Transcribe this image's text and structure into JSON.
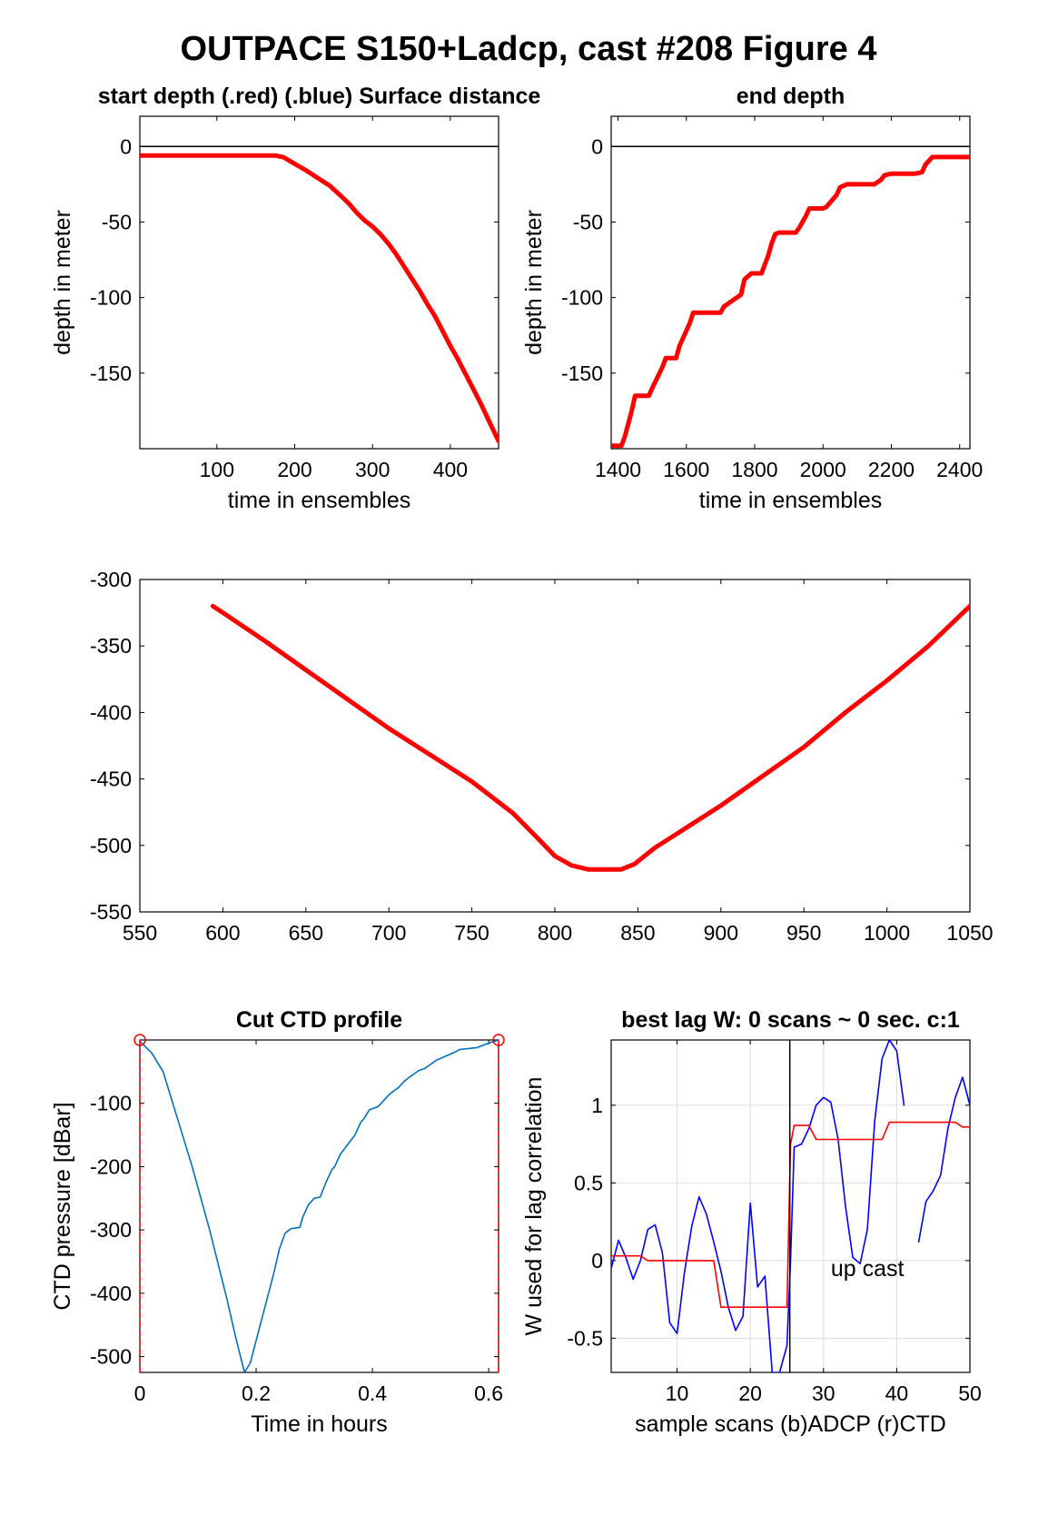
{
  "figure": {
    "title": "OUTPACE S150+Ladcp, cast #208    Figure 4"
  },
  "chart_data": [
    {
      "id": "start-depth",
      "type": "line",
      "title": "start depth (.red) (.blue) Surface distance",
      "xlabel": "time in ensembles",
      "ylabel": "depth in meter",
      "xlim": [
        1,
        462
      ],
      "ylim": [
        -200,
        20
      ],
      "xticks": [
        100,
        200,
        300,
        400
      ],
      "yticks": [
        0,
        -50,
        -100,
        -150
      ],
      "reference_line": 0,
      "series": [
        {
          "color": "#ff0000",
          "x": [
            1,
            50,
            100,
            150,
            175,
            185,
            195,
            205,
            215,
            230,
            245,
            260,
            270,
            280,
            290,
            300,
            310,
            320,
            330,
            340,
            350,
            360,
            370,
            380,
            390,
            400,
            410,
            420,
            430,
            440,
            450,
            462
          ],
          "y": [
            -6,
            -6,
            -6,
            -6,
            -6,
            -7,
            -10,
            -13,
            -16,
            -21,
            -26,
            -33,
            -38,
            -44,
            -49,
            -53,
            -58,
            -64,
            -71,
            -79,
            -87,
            -95,
            -104,
            -112,
            -122,
            -132,
            -141,
            -151,
            -161,
            -171,
            -182,
            -195
          ]
        }
      ]
    },
    {
      "id": "end-depth",
      "type": "line",
      "title": "end depth",
      "xlabel": "time in ensembles",
      "ylabel": "depth in meter",
      "xlim": [
        1380,
        2430
      ],
      "ylim": [
        -200,
        20
      ],
      "xticks": [
        1400,
        1600,
        1800,
        2000,
        2200,
        2400
      ],
      "yticks": [
        0,
        -50,
        -100,
        -150
      ],
      "reference_line": 0,
      "series": [
        {
          "color": "#ff0000",
          "x": [
            1380,
            1400,
            1410,
            1420,
            1440,
            1450,
            1480,
            1490,
            1500,
            1530,
            1540,
            1570,
            1580,
            1610,
            1620,
            1700,
            1710,
            1760,
            1770,
            1790,
            1800,
            1820,
            1830,
            1840,
            1850,
            1860,
            1870,
            1920,
            1930,
            1950,
            1960,
            2000,
            2010,
            2040,
            2050,
            2070,
            2080,
            2100,
            2120,
            2150,
            2170,
            2180,
            2200,
            2230,
            2270,
            2290,
            2300,
            2320,
            2340,
            2350,
            2380,
            2430
          ],
          "y": [
            -198,
            -198,
            -198,
            -192,
            -175,
            -165,
            -165,
            -165,
            -160,
            -146,
            -140,
            -140,
            -132,
            -117,
            -110,
            -110,
            -106,
            -98,
            -88,
            -84,
            -84,
            -84,
            -78,
            -72,
            -64,
            -58,
            -57,
            -57,
            -54,
            -46,
            -41,
            -41,
            -40,
            -32,
            -27,
            -25,
            -25,
            -25,
            -25,
            -25,
            -22,
            -19,
            -18,
            -18,
            -18,
            -17,
            -12,
            -7,
            -7,
            -7,
            -7,
            -7
          ]
        }
      ]
    },
    {
      "id": "middle-profile",
      "type": "line",
      "title": "",
      "xlabel": "",
      "ylabel": "",
      "xlim": [
        550,
        1050
      ],
      "ylim": [
        -550,
        -300
      ],
      "xticks": [
        550,
        600,
        650,
        700,
        750,
        800,
        850,
        900,
        950,
        1000,
        1050
      ],
      "yticks": [
        -300,
        -350,
        -400,
        -450,
        -500,
        -550
      ],
      "series": [
        {
          "color": "#ff0000",
          "x": [
            594,
            600,
            625,
            650,
            675,
            700,
            725,
            750,
            775,
            790,
            800,
            810,
            820,
            830,
            840,
            848,
            860,
            875,
            900,
            925,
            950,
            975,
            1000,
            1025,
            1050
          ],
          "y": [
            -320,
            -325,
            -346,
            -368,
            -390,
            -412,
            -432,
            -452,
            -476,
            -495,
            -508,
            -515,
            -518,
            -518,
            -518,
            -514,
            -502,
            -490,
            -470,
            -448,
            -426,
            -400,
            -376,
            -350,
            -320
          ]
        }
      ]
    },
    {
      "id": "cut-ctd",
      "type": "line",
      "title": "Cut CTD profile",
      "xlabel": "Time in hours",
      "ylabel": "CTD pressure [dBar]",
      "xlim": [
        0,
        0.617
      ],
      "ylim": [
        -525,
        0
      ],
      "xticks": [
        0,
        0.2,
        0.4,
        0.6
      ],
      "xtick_labels": [
        "0",
        "0.2",
        "0.4",
        "0.6"
      ],
      "yticks": [
        -100,
        -200,
        -300,
        -400,
        -500
      ],
      "series": [
        {
          "color": "#0072bd",
          "x": [
            0,
            0.02,
            0.04,
            0.06,
            0.09,
            0.12,
            0.15,
            0.165,
            0.18,
            0.19,
            0.21,
            0.23,
            0.24,
            0.25,
            0.26,
            0.275,
            0.28,
            0.29,
            0.3,
            0.31,
            0.32,
            0.33,
            0.335,
            0.345,
            0.355,
            0.36,
            0.37,
            0.38,
            0.385,
            0.395,
            0.41,
            0.42,
            0.43,
            0.445,
            0.455,
            0.465,
            0.48,
            0.49,
            0.51,
            0.52,
            0.54,
            0.55,
            0.58,
            0.6,
            0.617
          ],
          "y": [
            -2,
            -20,
            -50,
            -110,
            -200,
            -300,
            -410,
            -470,
            -525,
            -510,
            -440,
            -370,
            -330,
            -305,
            -298,
            -296,
            -280,
            -260,
            -250,
            -248,
            -225,
            -205,
            -200,
            -180,
            -168,
            -162,
            -150,
            -130,
            -125,
            -110,
            -105,
            -95,
            -85,
            -75,
            -65,
            -58,
            -48,
            -45,
            -32,
            -28,
            -20,
            -15,
            -12,
            -5,
            0
          ]
        }
      ],
      "markers": [
        {
          "x": 0,
          "y": 0
        },
        {
          "x": 0.617,
          "y": 0
        }
      ],
      "cut_lines": [
        0,
        0.617
      ]
    },
    {
      "id": "best-lag",
      "type": "line",
      "title": "best lag W: 0 scans ~ 0 sec.  c:1",
      "xlabel": "sample scans (b)ADCP (r)CTD",
      "ylabel": "W used for lag correlation",
      "xlim": [
        1,
        50
      ],
      "ylim": [
        -0.72,
        1.42
      ],
      "xticks": [
        10,
        20,
        30,
        40,
        50
      ],
      "yticks": [
        1,
        0.5,
        0,
        -0.5
      ],
      "yticklabels": [
        "1",
        "0.5",
        "0",
        "-0.5"
      ],
      "vline": 25.4,
      "annotation": {
        "text": "up cast",
        "x": 31,
        "y": -0.1
      },
      "series": [
        {
          "name": "ADCP",
          "color": "#0000ff",
          "x": [
            1,
            2,
            3,
            4,
            5,
            6,
            7,
            8,
            9,
            10,
            11,
            12,
            13,
            14,
            15,
            16,
            17,
            18,
            19,
            20,
            21,
            22,
            23,
            24,
            25,
            25.5,
            26,
            27,
            28,
            29,
            30,
            31,
            32,
            33,
            34,
            35,
            36,
            37,
            38,
            39,
            40,
            41
          ],
          "y": [
            -0.05,
            0.13,
            0.02,
            -0.12,
            0.0,
            0.2,
            0.23,
            0.05,
            -0.4,
            -0.47,
            -0.08,
            0.22,
            0.41,
            0.3,
            0.12,
            -0.07,
            -0.3,
            -0.45,
            -0.36,
            0.37,
            -0.17,
            -0.1,
            -0.72,
            -0.72,
            -0.55,
            0.0,
            0.73,
            0.75,
            0.85,
            1.0,
            1.05,
            1.02,
            0.78,
            0.35,
            0.02,
            -0.02,
            0.2,
            0.9,
            1.3,
            1.42,
            1.35,
            1.0
          ]
        },
        {
          "name": "ADCP-tail",
          "color": "#0000ff",
          "x": [
            43,
            44,
            45,
            46,
            47,
            48,
            49,
            50
          ],
          "y": [
            0.12,
            0.38,
            0.45,
            0.55,
            0.85,
            1.05,
            1.18,
            1.0
          ]
        },
        {
          "name": "CTD",
          "color": "#ff0000",
          "x": [
            1,
            5,
            6,
            15,
            16,
            25,
            25.5,
            26,
            27,
            28,
            29,
            30,
            37,
            38,
            39,
            47,
            48,
            49,
            50
          ],
          "y": [
            0.03,
            0.03,
            0.0,
            0.0,
            -0.3,
            -0.3,
            0.75,
            0.87,
            0.87,
            0.87,
            0.78,
            0.78,
            0.78,
            0.78,
            0.89,
            0.89,
            0.89,
            0.86,
            0.86
          ]
        }
      ]
    }
  ]
}
